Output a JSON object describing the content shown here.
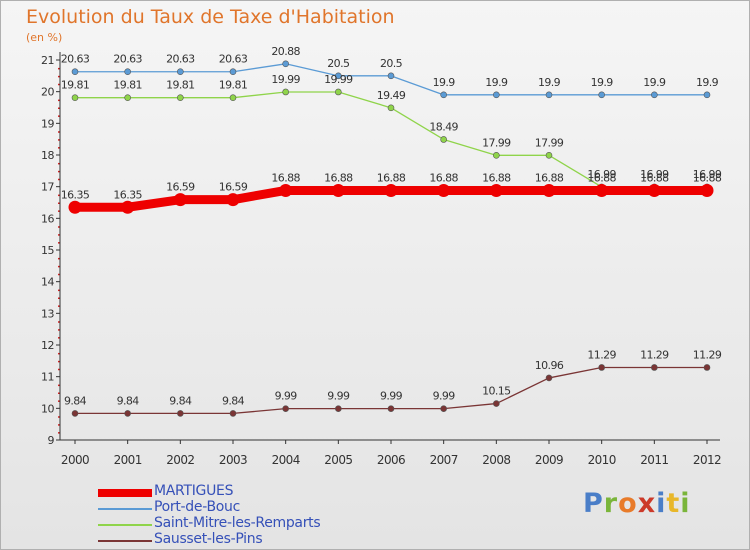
{
  "header": {
    "title": "Evolution du Taux de Taxe d'Habitation",
    "subtitle": "(en %)"
  },
  "logo": {
    "text": "Proxiti",
    "letters": [
      {
        "ch": "P",
        "color": "#4a7ec8"
      },
      {
        "ch": "r",
        "color": "#7ab53a"
      },
      {
        "ch": "o",
        "color": "#e87b2a"
      },
      {
        "ch": "x",
        "color": "#cc3a2a"
      },
      {
        "ch": "i",
        "color": "#4a7ec8"
      },
      {
        "ch": "t",
        "color": "#e8b72a"
      },
      {
        "ch": "i",
        "color": "#7ab53a"
      }
    ]
  },
  "chart_data": {
    "type": "line",
    "title": "Evolution du Taux de Taxe d'Habitation",
    "subtitle": "(en %)",
    "xlabel": "",
    "ylabel": "",
    "x": [
      "2000",
      "2001",
      "2002",
      "2003",
      "2004",
      "2005",
      "2006",
      "2007",
      "2008",
      "2009",
      "2010",
      "2011",
      "2012"
    ],
    "ylim": [
      9,
      21
    ],
    "yticks": [
      "9",
      "10",
      "11",
      "12",
      "13",
      "14",
      "15",
      "16",
      "17",
      "18",
      "19",
      "20",
      "21"
    ],
    "grid": false,
    "legend_position": "bottom-left",
    "series": [
      {
        "name": "MARTIGUES",
        "color": "#ee0000",
        "values": [
          16.35,
          16.35,
          16.59,
          16.59,
          16.88,
          16.88,
          16.88,
          16.88,
          16.88,
          16.88,
          16.88,
          16.88,
          16.88
        ],
        "labels": [
          "16.35",
          "16.35",
          "16.59",
          "16.59",
          "16.88",
          "16.88",
          "16.88",
          "16.88",
          "16.88",
          "16.88",
          "16.88",
          "16.88",
          "16.88"
        ]
      },
      {
        "name": "Port-de-Bouc",
        "color": "#5b9bd5",
        "values": [
          20.63,
          20.63,
          20.63,
          20.63,
          20.88,
          20.5,
          20.5,
          19.9,
          19.9,
          19.9,
          19.9,
          19.9,
          19.9
        ],
        "labels": [
          "20.63",
          "20.63",
          "20.63",
          "20.63",
          "20.88",
          "20.5",
          "20.5",
          "19.9",
          "19.9",
          "19.9",
          "19.9",
          "19.9",
          "19.9"
        ]
      },
      {
        "name": "Saint-Mitre-les-Remparts",
        "color": "#8fd44a",
        "values": [
          19.81,
          19.81,
          19.81,
          19.81,
          19.99,
          19.99,
          19.49,
          18.49,
          17.99,
          17.99,
          16.99,
          16.99,
          16.99
        ],
        "labels": [
          "19.81",
          "19.81",
          "19.81",
          "19.81",
          "19.99",
          "19.99",
          "19.49",
          "18.49",
          "17.99",
          "17.99",
          "16.99",
          "16.99",
          "16.99"
        ]
      },
      {
        "name": "Sausset-les-Pins",
        "color": "#7a3535",
        "values": [
          9.84,
          9.84,
          9.84,
          9.84,
          9.99,
          9.99,
          9.99,
          9.99,
          10.15,
          10.96,
          11.29,
          11.29,
          11.29
        ],
        "labels": [
          "9.84",
          "9.84",
          "9.84",
          "9.84",
          "9.99",
          "9.99",
          "9.99",
          "9.99",
          "10.15",
          "10.96",
          "11.29",
          "11.29",
          "11.29"
        ]
      }
    ]
  }
}
